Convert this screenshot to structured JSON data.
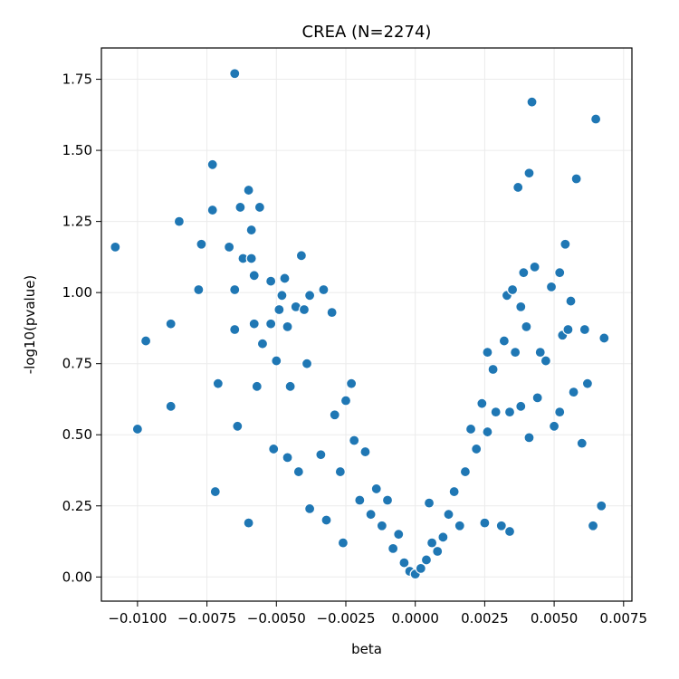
{
  "chart_data": {
    "type": "scatter",
    "title": "CREA (N=2274)",
    "xlabel": "beta",
    "ylabel": "-log10(pvalue)",
    "xlim": [
      -0.0113,
      0.0078
    ],
    "ylim": [
      -0.085,
      1.86
    ],
    "xticks": [
      -0.01,
      -0.0075,
      -0.005,
      -0.0025,
      0.0,
      0.0025,
      0.005,
      0.0075
    ],
    "xtick_labels": [
      "−0.0100",
      "−0.0075",
      "−0.0050",
      "−0.0025",
      "0.0000",
      "0.0025",
      "0.0050",
      "0.0075"
    ],
    "yticks": [
      0.0,
      0.25,
      0.5,
      0.75,
      1.0,
      1.25,
      1.5,
      1.75
    ],
    "ytick_labels": [
      "0.00",
      "0.25",
      "0.50",
      "0.75",
      "1.00",
      "1.25",
      "1.50",
      "1.75"
    ],
    "grid": true,
    "colors": {
      "point": "#1f77b4",
      "point_edge": "#ffffff",
      "grid": "#ebebeb",
      "axis": "#000000"
    },
    "points": [
      [
        -0.0108,
        1.16
      ],
      [
        -0.0097,
        0.83
      ],
      [
        -0.01,
        0.52
      ],
      [
        -0.0088,
        0.89
      ],
      [
        -0.0088,
        0.6
      ],
      [
        -0.0085,
        1.25
      ],
      [
        -0.0078,
        1.01
      ],
      [
        -0.0077,
        1.17
      ],
      [
        -0.0073,
        1.45
      ],
      [
        -0.0073,
        1.29
      ],
      [
        -0.0072,
        0.3
      ],
      [
        -0.0071,
        0.68
      ],
      [
        -0.0067,
        1.16
      ],
      [
        -0.0065,
        1.77
      ],
      [
        -0.0065,
        1.01
      ],
      [
        -0.0065,
        0.87
      ],
      [
        -0.0064,
        0.53
      ],
      [
        -0.0063,
        1.3
      ],
      [
        -0.0062,
        1.12
      ],
      [
        -0.006,
        1.36
      ],
      [
        -0.006,
        0.19
      ],
      [
        -0.0059,
        1.22
      ],
      [
        -0.0059,
        1.12
      ],
      [
        -0.0058,
        1.06
      ],
      [
        -0.0058,
        0.89
      ],
      [
        -0.0056,
        1.3
      ],
      [
        -0.0057,
        0.67
      ],
      [
        -0.0055,
        0.82
      ],
      [
        -0.0052,
        0.89
      ],
      [
        -0.0052,
        1.04
      ],
      [
        -0.0051,
        0.45
      ],
      [
        -0.005,
        0.76
      ],
      [
        -0.0049,
        0.94
      ],
      [
        -0.0048,
        0.99
      ],
      [
        -0.0047,
        1.05
      ],
      [
        -0.0046,
        0.88
      ],
      [
        -0.0046,
        0.42
      ],
      [
        -0.0045,
        0.67
      ],
      [
        -0.0043,
        0.95
      ],
      [
        -0.0042,
        0.37
      ],
      [
        -0.0041,
        1.13
      ],
      [
        -0.004,
        0.94
      ],
      [
        -0.0039,
        0.75
      ],
      [
        -0.0038,
        0.24
      ],
      [
        -0.0038,
        0.99
      ],
      [
        -0.0034,
        0.43
      ],
      [
        -0.0033,
        1.01
      ],
      [
        -0.0032,
        0.2
      ],
      [
        -0.003,
        0.93
      ],
      [
        -0.0029,
        0.57
      ],
      [
        -0.0027,
        0.37
      ],
      [
        -0.0026,
        0.12
      ],
      [
        -0.0025,
        0.62
      ],
      [
        -0.0023,
        0.68
      ],
      [
        -0.0022,
        0.48
      ],
      [
        -0.002,
        0.27
      ],
      [
        -0.0018,
        0.44
      ],
      [
        -0.0016,
        0.22
      ],
      [
        -0.0014,
        0.31
      ],
      [
        -0.0012,
        0.18
      ],
      [
        -0.001,
        0.27
      ],
      [
        -0.0008,
        0.1
      ],
      [
        -0.0006,
        0.15
      ],
      [
        -0.0004,
        0.05
      ],
      [
        -0.0002,
        0.02
      ],
      [
        0.0,
        0.01
      ],
      [
        0.0002,
        0.03
      ],
      [
        0.0004,
        0.06
      ],
      [
        0.0006,
        0.12
      ],
      [
        0.0005,
        0.26
      ],
      [
        0.0008,
        0.09
      ],
      [
        0.001,
        0.14
      ],
      [
        0.0012,
        0.22
      ],
      [
        0.0014,
        0.3
      ],
      [
        0.0016,
        0.18
      ],
      [
        0.0018,
        0.37
      ],
      [
        0.002,
        0.52
      ],
      [
        0.0022,
        0.45
      ],
      [
        0.0024,
        0.61
      ],
      [
        0.0025,
        0.19
      ],
      [
        0.0026,
        0.79
      ],
      [
        0.0028,
        0.73
      ],
      [
        0.0029,
        0.58
      ],
      [
        0.0031,
        0.18
      ],
      [
        0.0032,
        0.83
      ],
      [
        0.0033,
        0.99
      ],
      [
        0.0034,
        0.16
      ],
      [
        0.0035,
        1.01
      ],
      [
        0.0036,
        0.79
      ],
      [
        0.0037,
        1.37
      ],
      [
        0.0038,
        0.95
      ],
      [
        0.0039,
        1.07
      ],
      [
        0.004,
        0.88
      ],
      [
        0.0041,
        0.49
      ],
      [
        0.0041,
        1.42
      ],
      [
        0.0042,
        1.67
      ],
      [
        0.0043,
        1.09
      ],
      [
        0.0044,
        0.63
      ],
      [
        0.0045,
        0.79
      ],
      [
        0.0047,
        0.76
      ],
      [
        0.0049,
        1.02
      ],
      [
        0.005,
        0.53
      ],
      [
        0.0052,
        1.07
      ],
      [
        0.0052,
        0.58
      ],
      [
        0.0053,
        0.85
      ],
      [
        0.0054,
        1.17
      ],
      [
        0.0055,
        0.87
      ],
      [
        0.0056,
        0.97
      ],
      [
        0.0057,
        0.65
      ],
      [
        0.0058,
        1.4
      ],
      [
        0.006,
        0.47
      ],
      [
        0.0061,
        0.87
      ],
      [
        0.0062,
        0.68
      ],
      [
        0.0064,
        0.18
      ],
      [
        0.0065,
        1.61
      ],
      [
        0.0067,
        0.25
      ],
      [
        0.0068,
        0.84
      ],
      [
        0.0034,
        0.58
      ],
      [
        0.0038,
        0.6
      ],
      [
        0.0026,
        0.51
      ]
    ]
  }
}
